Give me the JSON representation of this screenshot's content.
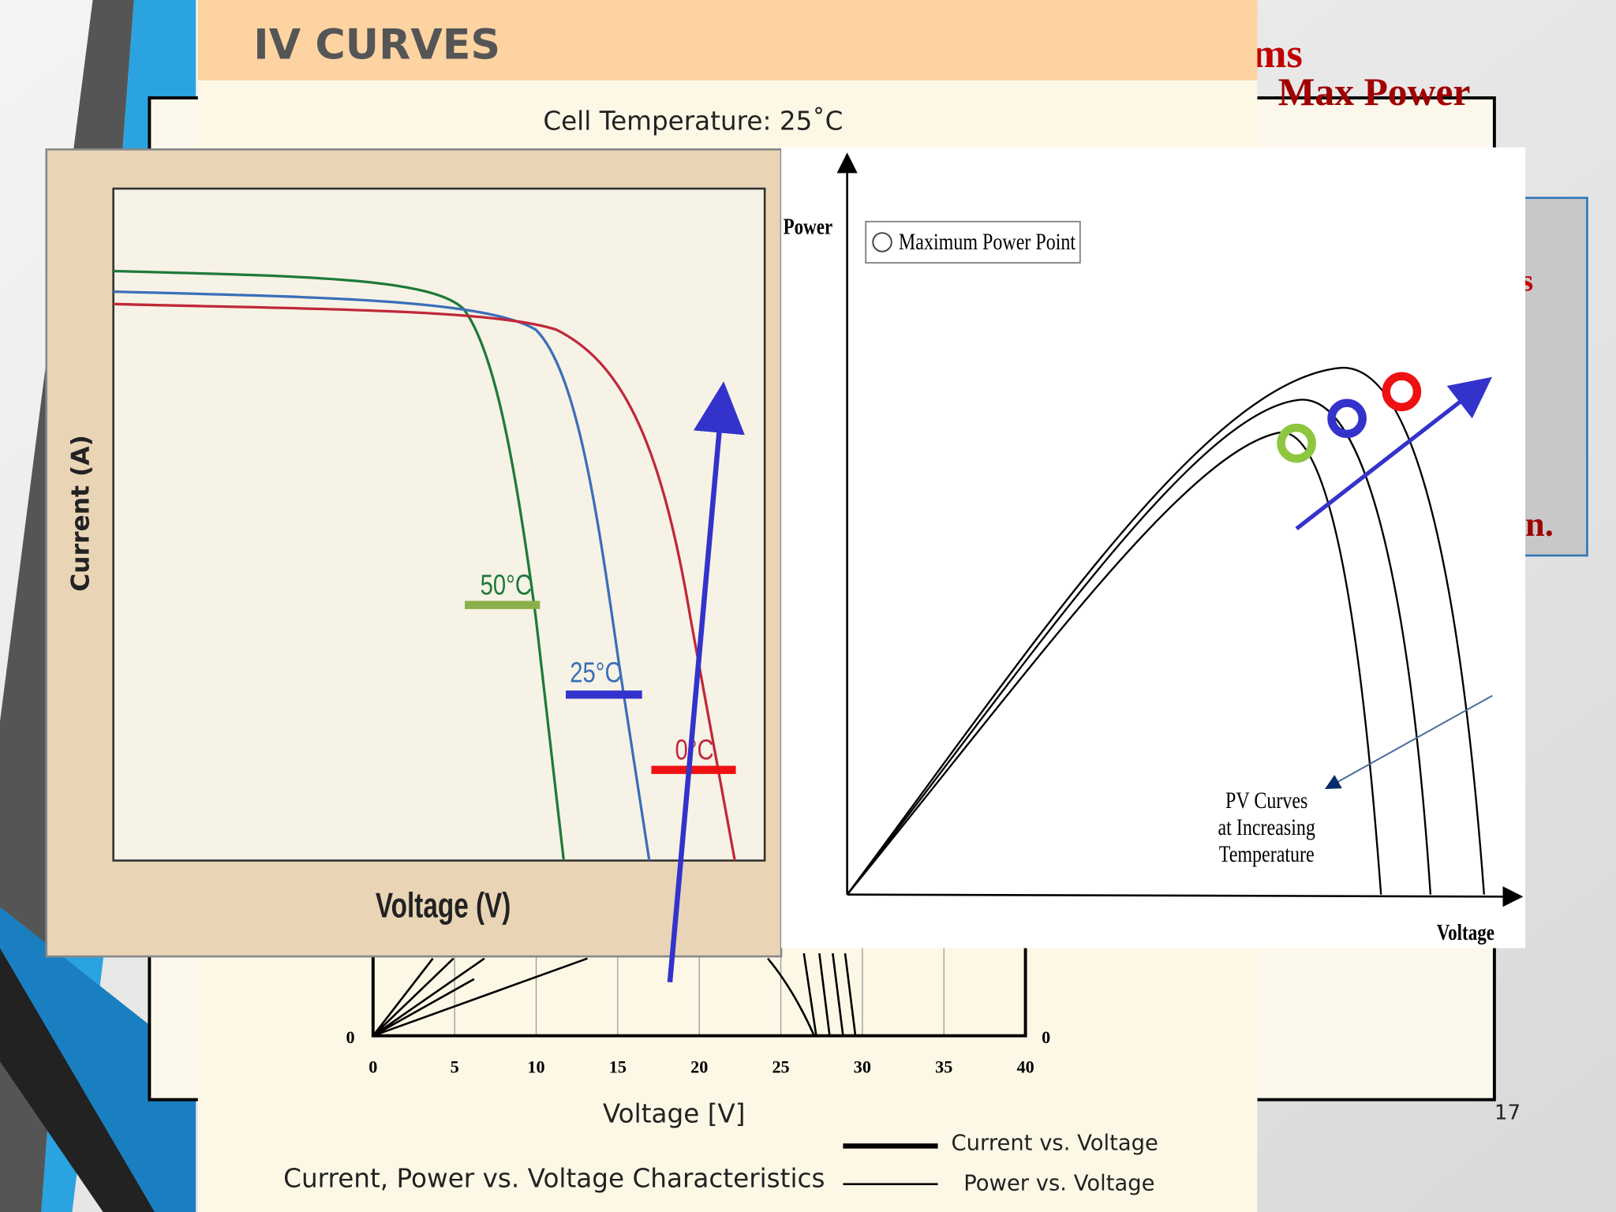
{
  "slide": {
    "number": "17",
    "behind_title": "ms",
    "behind_heading": "Max Power",
    "behind_text_1": "s",
    "behind_text_2": "n."
  },
  "back_image": {
    "title": "IV CURVES",
    "subtitle": "Cell Temperature:  25˚C",
    "y_left_zero": "0",
    "y_right_zero": "0",
    "x_ticks": [
      "0",
      "5",
      "10",
      "15",
      "20",
      "25",
      "30",
      "35",
      "40"
    ],
    "x_label": "Voltage [V]",
    "caption": "Current, Power vs. Voltage Characteristics",
    "legend": [
      "Current vs. Voltage",
      "Power vs. Voltage"
    ]
  },
  "iv_image": {
    "y_label": "Current (A)",
    "x_label": "Voltage (V)",
    "labels": [
      "50°C",
      "25°C",
      "0°C"
    ]
  },
  "pv_image": {
    "y_label": "Power",
    "legend": "Maximum Power Point",
    "note": [
      "PV Curves",
      "at Increasing",
      "Temperature"
    ],
    "x_label": "Voltage"
  }
}
